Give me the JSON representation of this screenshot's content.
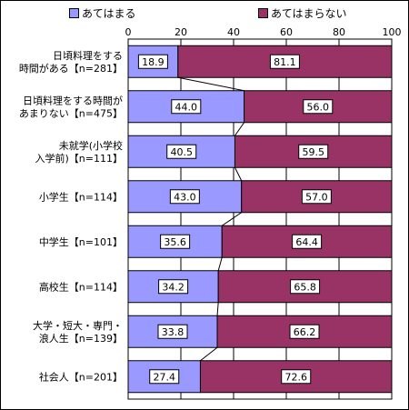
{
  "chart_data": {
    "type": "bar",
    "stacked": true,
    "orientation": "horizontal",
    "percent_axis": true,
    "xlim": [
      0,
      100
    ],
    "xticks": [
      0,
      20,
      40,
      60,
      80,
      100
    ],
    "legend_position": "top",
    "grid": true,
    "categories": [
      [
        "日頃料理をする",
        "時間がある【n=281】"
      ],
      [
        "日頃料理をする時間が",
        "あまりない【n=475】"
      ],
      [
        "未就学(小学校",
        "入学前)【n=111】"
      ],
      [
        "小学生【n=114】"
      ],
      [
        "中学生【n=101】"
      ],
      [
        "高校生【n=114】"
      ],
      [
        "大学・短大・専門・",
        "浪人生【n=139】"
      ],
      [
        "社会人【n=201】"
      ]
    ],
    "series": [
      {
        "name": "あてはまる",
        "color": "#9999ff",
        "values": [
          18.9,
          44.0,
          40.5,
          43.0,
          35.6,
          34.2,
          33.8,
          27.4
        ]
      },
      {
        "name": "あてはまらない",
        "color": "#993366",
        "values": [
          81.1,
          56.0,
          59.5,
          57.0,
          64.4,
          65.8,
          66.2,
          72.6
        ]
      }
    ]
  }
}
